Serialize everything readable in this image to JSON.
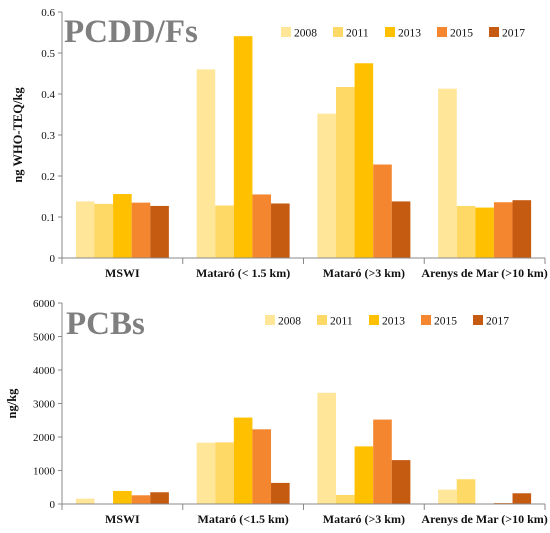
{
  "chart_data": [
    {
      "type": "bar",
      "title": "PCDD/Fs",
      "ylabel": "ng WHO-TEQ/kg",
      "xlabel": "",
      "ylim": [
        0,
        0.6
      ],
      "yticks": [
        "0",
        "0.1",
        "0.2",
        "0.3",
        "0.4",
        "0.5",
        "0.6"
      ],
      "categories": [
        "MSWI",
        "Mataró (< 1.5 km)",
        "Mataró (>3 km)",
        "Arenys de Mar (>10 km)"
      ],
      "legend_position": "top-right",
      "grid": false,
      "series": [
        {
          "name": "2008",
          "color": "#FFE699",
          "values": [
            0.138,
            0.46,
            0.352,
            0.413
          ]
        },
        {
          "name": "2011",
          "color": "#FFD966",
          "values": [
            0.132,
            0.128,
            0.417,
            0.127
          ]
        },
        {
          "name": "2013",
          "color": "#FFC000",
          "values": [
            0.156,
            0.541,
            0.475,
            0.123
          ]
        },
        {
          "name": "2015",
          "color": "#F4862F",
          "values": [
            0.135,
            0.155,
            0.228,
            0.136
          ]
        },
        {
          "name": "2017",
          "color": "#C55A11",
          "values": [
            0.127,
            0.133,
            0.138,
            0.141
          ]
        }
      ]
    },
    {
      "type": "bar",
      "title": "PCBs",
      "ylabel": "ng/kg",
      "xlabel": "",
      "ylim": [
        0,
        6000
      ],
      "yticks": [
        "0",
        "1000",
        "2000",
        "3000",
        "4000",
        "5000",
        "6000"
      ],
      "categories": [
        "MSWI",
        "Mataró (<1.5 km)",
        "Mataró (>3 km)",
        "Arenys de Mar (>10 km)"
      ],
      "legend_position": "top-right",
      "grid": false,
      "series": [
        {
          "name": "2008",
          "color": "#FFE699",
          "values": [
            160,
            1830,
            3320,
            430
          ]
        },
        {
          "name": "2011",
          "color": "#FFD966",
          "values": [
            0,
            1840,
            270,
            740
          ]
        },
        {
          "name": "2013",
          "color": "#FFC000",
          "values": [
            390,
            2580,
            1720,
            0
          ]
        },
        {
          "name": "2015",
          "color": "#F4862F",
          "values": [
            260,
            2230,
            2520,
            30
          ]
        },
        {
          "name": "2017",
          "color": "#C55A11",
          "values": [
            350,
            630,
            1310,
            320
          ]
        }
      ]
    }
  ]
}
